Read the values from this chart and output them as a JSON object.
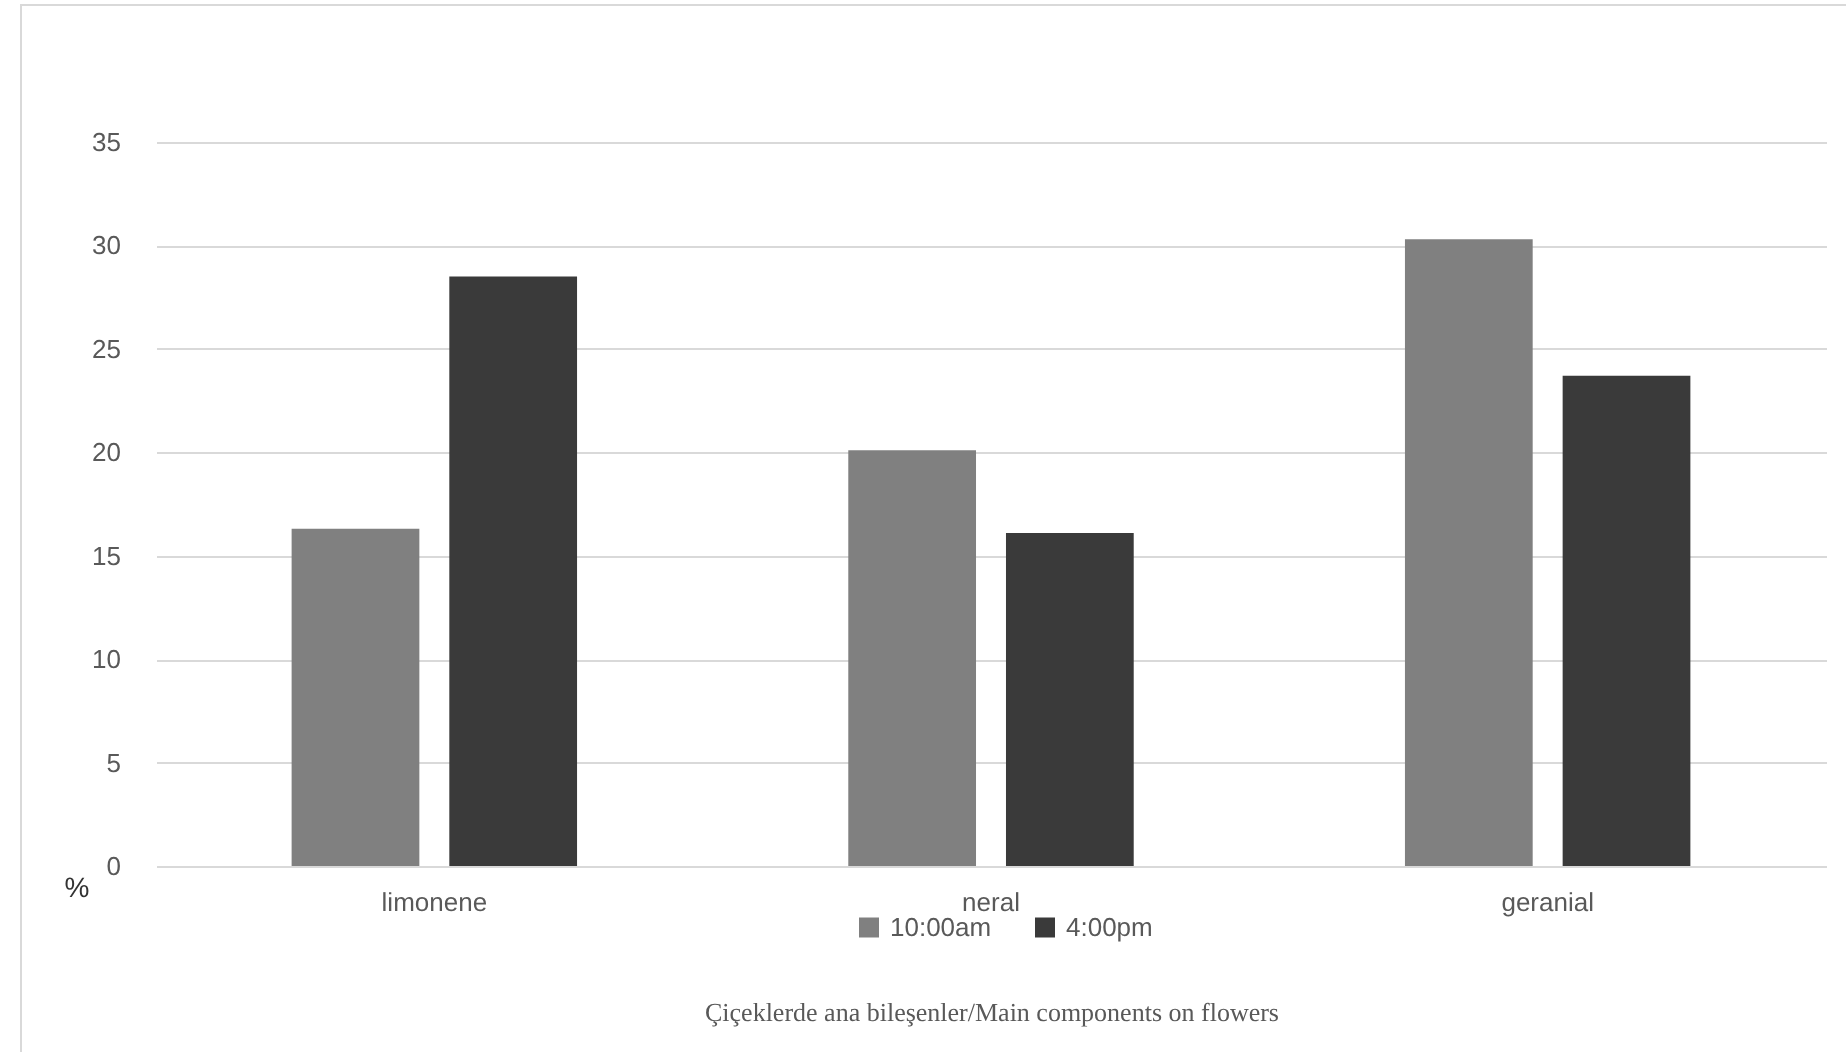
{
  "chart_data": {
    "type": "bar",
    "xlabel": "Çiçeklerde ana bileşenler/Main components on flowers",
    "ylabel": "%",
    "categories": [
      "limonene",
      "neral",
      "geranial"
    ],
    "series": [
      {
        "name": "10:00am",
        "color": "#808080",
        "values": [
          16.3,
          20.1,
          30.3
        ]
      },
      {
        "name": "4:00pm",
        "color": "#3a3a3a",
        "values": [
          28.5,
          16.1,
          23.7
        ]
      }
    ],
    "ylim": [
      0,
      35
    ],
    "yticks": [
      0,
      5,
      10,
      15,
      20,
      25,
      30,
      35
    ],
    "grid": "y",
    "legend": "bottom"
  }
}
